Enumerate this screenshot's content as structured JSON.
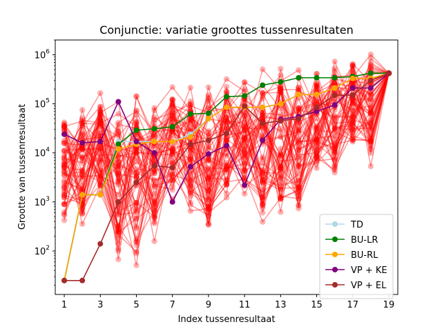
{
  "chart_data": {
    "type": "line",
    "title": "Conjunctie: variatie groottes tussenresultaten",
    "xlabel": "Index tussenresultaat",
    "ylabel": "Grootte van tussenresultaat",
    "y_scale": "log",
    "xlim": [
      0.5,
      19.5
    ],
    "ylim": [
      13,
      2000000
    ],
    "x_ticks": [
      1,
      3,
      5,
      7,
      9,
      11,
      13,
      15,
      17,
      19
    ],
    "y_ticks": [
      {
        "value": 100,
        "base": "10",
        "exp": "2"
      },
      {
        "value": 1000,
        "base": "10",
        "exp": "3"
      },
      {
        "value": 10000,
        "base": "10",
        "exp": "4"
      },
      {
        "value": 100000,
        "base": "10",
        "exp": "5"
      },
      {
        "value": 1000000,
        "base": "10",
        "exp": "6"
      }
    ],
    "grid": false,
    "legend_position": "lower right",
    "x": [
      1,
      2,
      3,
      4,
      5,
      6,
      7,
      8,
      9,
      10,
      11,
      12,
      13,
      14,
      15,
      16,
      17,
      18,
      19
    ],
    "background_color": "#ff0000",
    "background_series_count": 60,
    "background_envelope": {
      "low": [
        250,
        250,
        1000,
        25,
        25,
        130,
        1000,
        400,
        130,
        1000,
        1200,
        250,
        450,
        450,
        3000,
        2000,
        9000,
        4500,
        420000
      ],
      "high": [
        120000,
        115000,
        170000,
        130000,
        260000,
        270000,
        260000,
        270000,
        250000,
        380000,
        450000,
        550000,
        750000,
        600000,
        650000,
        900000,
        1200000,
        1300000,
        420000
      ]
    },
    "series": [
      {
        "name": "TD",
        "color": "#add8e6",
        "values": [
          25,
          1400,
          1400,
          17000,
          17000,
          17000,
          17000,
          24000,
          50000,
          85000,
          85000,
          85000,
          100000,
          155000,
          155000,
          210000,
          330000,
          330000,
          420000
        ]
      },
      {
        "name": "BU-LR",
        "color": "#008000",
        "values": [
          25,
          1400,
          1400,
          15000,
          29000,
          31000,
          34000,
          62000,
          64000,
          140000,
          145000,
          240000,
          280000,
          340000,
          340000,
          340000,
          360000,
          420000,
          420000
        ]
      },
      {
        "name": "BU-RL",
        "color": "#ffa500",
        "values": [
          25,
          1400,
          1400,
          12000,
          15000,
          17000,
          17000,
          21000,
          50000,
          85000,
          85000,
          85000,
          100000,
          155000,
          155000,
          210000,
          330000,
          330000,
          420000
        ]
      },
      {
        "name": "VP + KE",
        "color": "#800080",
        "values": [
          24000,
          16000,
          17000,
          110000,
          17000,
          10000,
          1000,
          5200,
          9500,
          14000,
          2200,
          18000,
          48000,
          55000,
          70000,
          95000,
          210000,
          210000,
          420000
        ]
      },
      {
        "name": "VP + EL",
        "color": "#a52a2a",
        "values": [
          25,
          25,
          140,
          1000,
          2500,
          5500,
          5000,
          15000,
          18000,
          25000,
          90000,
          40000,
          45000,
          50000,
          85000,
          150000,
          150000,
          300000,
          420000
        ]
      }
    ]
  }
}
